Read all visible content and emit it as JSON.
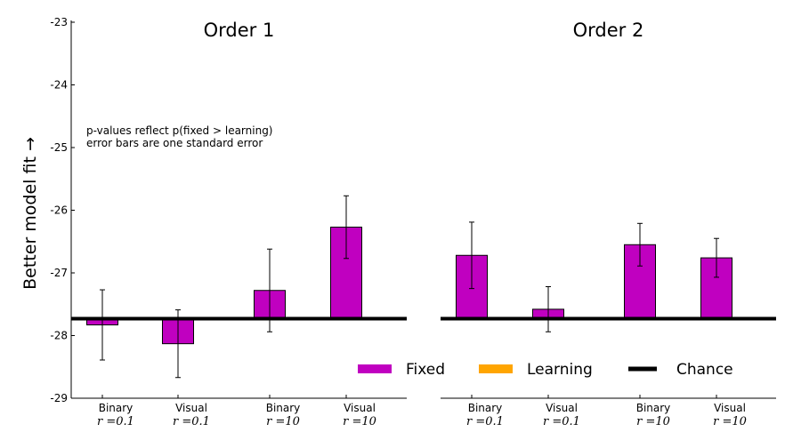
{
  "chart_data": {
    "type": "bar",
    "ylabel": "Better model fit →",
    "ylim": [
      -29,
      -23
    ],
    "yticks": [
      -29,
      -28,
      -27,
      -26,
      -25,
      -24,
      -23
    ],
    "chance_level": -27.73,
    "note_lines": [
      "p-values reflect p(fixed > learning)",
      "error bars are one standard error"
    ],
    "legend": {
      "placement": "bottom-right",
      "entries": [
        {
          "label": "Fixed",
          "color": "#c000c0",
          "kind": "bar"
        },
        {
          "label": "Learning",
          "color": "#ffa500",
          "kind": "bar"
        },
        {
          "label": "Chance",
          "color": "#000000",
          "kind": "line"
        }
      ]
    },
    "categories": [
      {
        "top": "Binary",
        "bottom": "r =0.1"
      },
      {
        "top": "Visual",
        "bottom": "r =0.1"
      },
      {
        "top": "Binary",
        "bottom": "r =10"
      },
      {
        "top": "Visual",
        "bottom": "r =10"
      }
    ],
    "panels": [
      {
        "title": "Order 1",
        "series": [
          {
            "name": "Fixed",
            "values": [
              -27.83,
              -28.13,
              -27.28,
              -26.27
            ],
            "errors": [
              0.56,
              0.54,
              0.66,
              0.5
            ]
          }
        ]
      },
      {
        "title": "Order 2",
        "series": [
          {
            "name": "Fixed",
            "values": [
              -26.72,
              -27.58,
              -26.55,
              -26.76
            ],
            "errors": [
              0.53,
              0.36,
              0.34,
              0.31
            ]
          }
        ]
      }
    ]
  }
}
